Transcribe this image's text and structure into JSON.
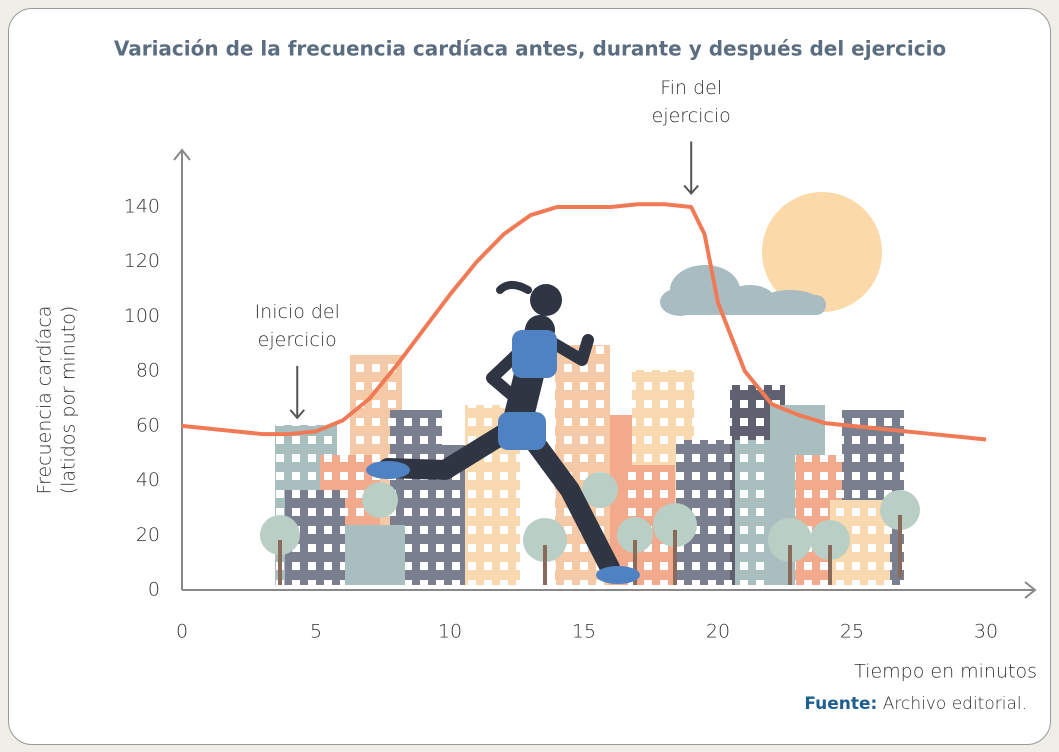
{
  "chart_data": {
    "type": "line",
    "title": "Variación de la frecuencia cardíaca antes, durante y después del ejercicio",
    "ylabel_lines": [
      "Frecuencia cardíaca",
      "(latidos por minuto)"
    ],
    "xlabel": "Tiempo en minutos",
    "x": [
      0,
      1,
      2,
      3,
      4,
      5,
      6,
      7,
      8,
      9,
      10,
      11,
      12,
      13,
      14,
      15,
      16,
      17,
      18,
      19,
      19.5,
      20,
      21,
      22,
      23,
      24,
      25,
      26,
      27,
      28,
      29,
      30
    ],
    "values": [
      60,
      59,
      58,
      57,
      57,
      58,
      62,
      70,
      82,
      95,
      108,
      120,
      130,
      137,
      140,
      140,
      140,
      141,
      141,
      140,
      130,
      105,
      80,
      68,
      64,
      61,
      60,
      59,
      58,
      57,
      56,
      55
    ],
    "color": "#f07a55",
    "xlim": [
      0,
      30
    ],
    "xticks": [
      0,
      5,
      10,
      15,
      20,
      25,
      30
    ],
    "ylim": [
      0,
      140
    ],
    "yticks": [
      0,
      20,
      40,
      60,
      80,
      100,
      120,
      140
    ],
    "annotations": [
      {
        "text": "Inicio del ejercicio",
        "x": 4.3,
        "y": 60
      },
      {
        "text": "Fin del ejercicio",
        "x": 19,
        "y": 142
      }
    ],
    "source_label": "Fuente:",
    "source": "Archivo editorial."
  }
}
